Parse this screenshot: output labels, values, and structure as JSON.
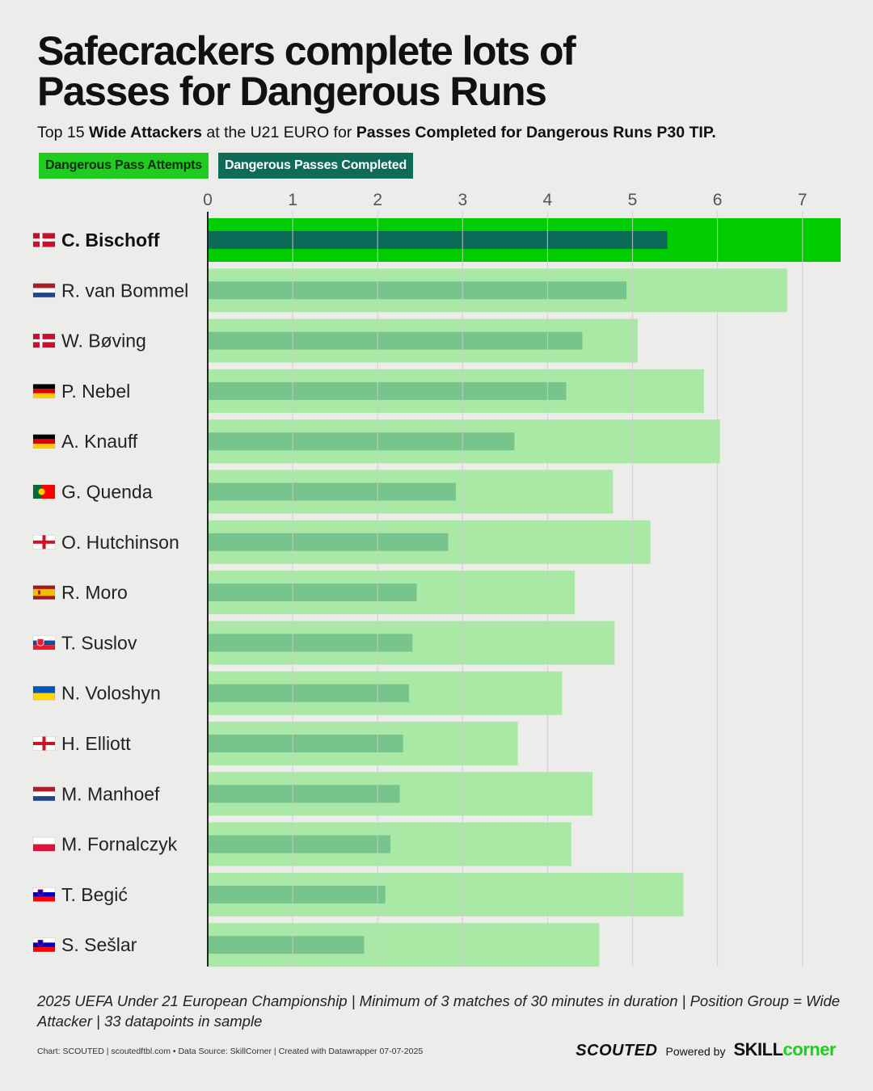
{
  "header": {
    "title_line1": "Safecrackers complete lots of",
    "title_line2": "Passes for Dangerous Runs",
    "subtitle": {
      "p1": "Top 15 ",
      "b1": "Wide Attackers",
      "p2": " at the U21 EURO for ",
      "b2": "Passes Completed for Dangerous Runs P30 TIP."
    }
  },
  "legend": {
    "attempts": "Dangerous Pass Attempts",
    "completed": "Dangerous Passes Completed"
  },
  "colors": {
    "highlight_attempts": "#00cc00",
    "highlight_completed": "#0c6b58",
    "attempts": "#aae8a6",
    "completed": "#78c48d",
    "gridline": "#cccccc",
    "axis": "#222222"
  },
  "chart_data": {
    "type": "bar",
    "orientation": "horizontal",
    "title": "Safecrackers complete lots of Passes for Dangerous Runs",
    "xlim": [
      0,
      7.45
    ],
    "ticks": [
      0,
      1,
      2,
      3,
      4,
      5,
      6,
      7
    ],
    "highlighted": "C. Bischoff",
    "categories": [
      {
        "name": "C. Bischoff",
        "flag": "denmark"
      },
      {
        "name": "R. van Bommel",
        "flag": "netherlands"
      },
      {
        "name": "W. Bøving",
        "flag": "denmark"
      },
      {
        "name": "P. Nebel",
        "flag": "germany"
      },
      {
        "name": "A. Knauff",
        "flag": "germany"
      },
      {
        "name": "G. Quenda",
        "flag": "portugal"
      },
      {
        "name": "O. Hutchinson",
        "flag": "england"
      },
      {
        "name": "R. Moro",
        "flag": "spain"
      },
      {
        "name": "T. Suslov",
        "flag": "slovakia"
      },
      {
        "name": "N. Voloshyn",
        "flag": "ukraine"
      },
      {
        "name": "H. Elliott",
        "flag": "england"
      },
      {
        "name": "M. Manhoef",
        "flag": "netherlands"
      },
      {
        "name": "M. Fornalczyk",
        "flag": "poland"
      },
      {
        "name": "T. Begić",
        "flag": "slovenia"
      },
      {
        "name": "S. Sešlar",
        "flag": "slovenia"
      }
    ],
    "series": [
      {
        "name": "Dangerous Pass Attempts",
        "values": [
          7.45,
          6.82,
          5.06,
          5.84,
          6.03,
          4.77,
          5.21,
          4.32,
          4.79,
          4.17,
          3.65,
          4.53,
          4.28,
          5.6,
          4.61
        ]
      },
      {
        "name": "Dangerous Passes Completed",
        "values": [
          5.41,
          4.93,
          4.41,
          4.22,
          3.61,
          2.92,
          2.83,
          2.46,
          2.41,
          2.37,
          2.3,
          2.26,
          2.15,
          2.09,
          1.84
        ]
      }
    ]
  },
  "footer": {
    "note": "2025 UEFA Under 21 European Championship | Minimum of 3 matches of 30 minutes in duration | Position Group = Wide Attacker | 33 datapoints in sample",
    "credits": "Chart: SCOUTED | scoutedftbl.com • Data Source: SkillCorner | Created with Datawrapper 07-07-2025",
    "brand_scouted": "SCOUTED",
    "brand_powered": "Powered by",
    "brand_skill": "SKILL",
    "brand_corner": "corner"
  }
}
